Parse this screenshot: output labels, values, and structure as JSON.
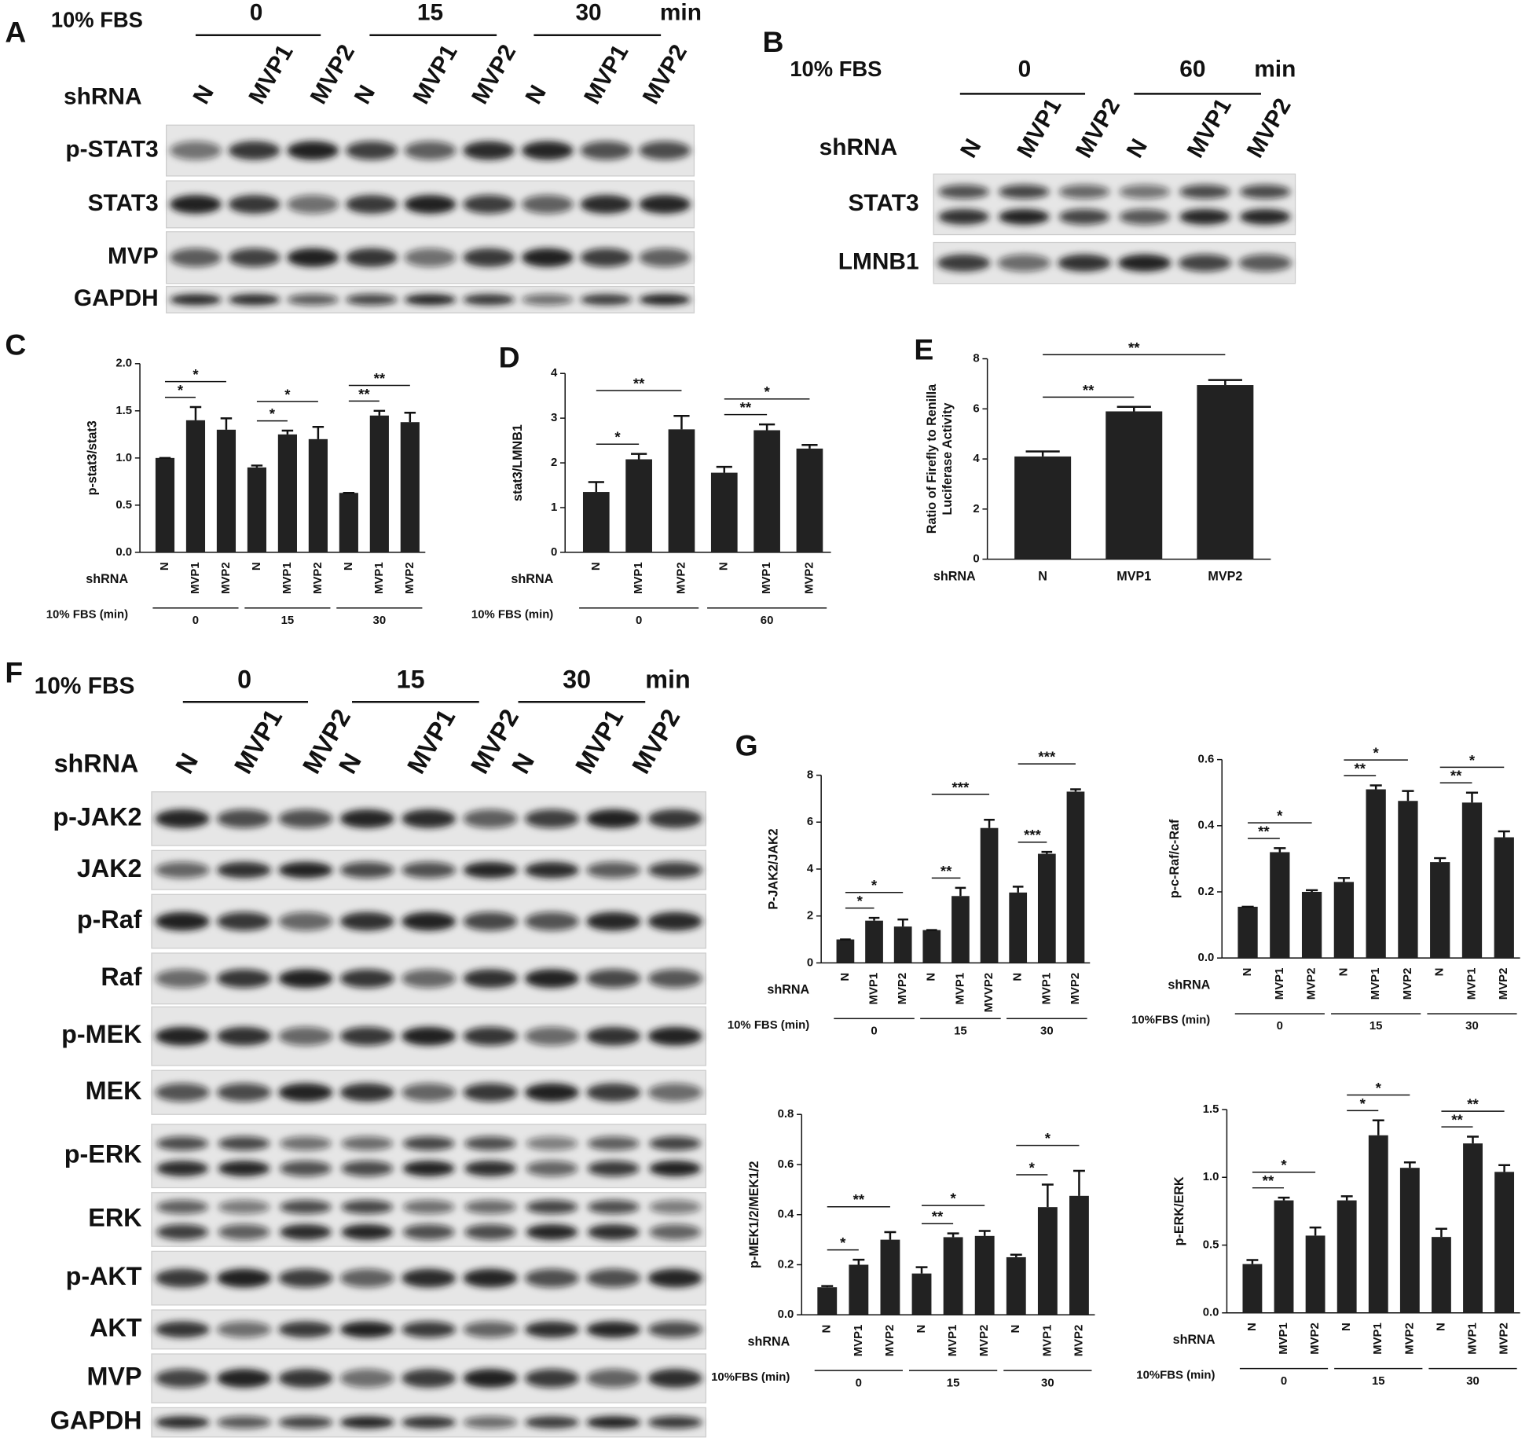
{
  "blots": [
    {
      "panel": "A",
      "treatment": "10% FBS",
      "times": [
        "0",
        "15",
        "30"
      ],
      "unit": "min",
      "shrna": "shRNA",
      "lanes": [
        "N",
        "MVP1",
        "MVP2",
        "N",
        "MVP1",
        "MVP2",
        "N",
        "MVP1",
        "MVP2"
      ],
      "rows": [
        "p-STAT3",
        "STAT3",
        "MVP",
        "GAPDH"
      ]
    },
    {
      "panel": "B",
      "treatment": "10% FBS",
      "times": [
        "0",
        "60"
      ],
      "unit": "min",
      "shrna": "shRNA",
      "lanes": [
        "N",
        "MVP1",
        "MVP2",
        "N",
        "MVP1",
        "MVP2"
      ],
      "rows": [
        "STAT3",
        "LMNB1"
      ]
    },
    {
      "panel": "F",
      "treatment": "10% FBS",
      "times": [
        "0",
        "15",
        "30"
      ],
      "unit": "min",
      "shrna": "shRNA",
      "lanes": [
        "N",
        "MVP1",
        "MVP2",
        "N",
        "MVP1",
        "MVP2",
        "N",
        "MVP1",
        "MVP2"
      ],
      "rows": [
        "p-JAK2",
        "JAK2",
        "p-Raf",
        "Raf",
        "p-MEK",
        "MEK",
        "p-ERK",
        "ERK",
        "p-AKT",
        "AKT",
        "MVP",
        "GAPDH"
      ]
    }
  ],
  "chart_data": [
    {
      "type": "bar",
      "panel": "C",
      "ylabel": [
        "p-stat3/stat3"
      ],
      "color": "#222222",
      "categories": [
        "N",
        "MVP1",
        "MVP2",
        "N",
        "MVP1",
        "MVP2",
        "N",
        "MVP1",
        "MVP2"
      ],
      "values": [
        1.0,
        1.4,
        1.3,
        0.9,
        1.25,
        1.2,
        0.63,
        1.45,
        1.38
      ],
      "errors": [
        0,
        0.14,
        0.12,
        0.02,
        0.04,
        0.13,
        0,
        0.05,
        0.1
      ],
      "ylim": [
        0,
        2.0
      ],
      "yticks": [
        {
          "value": 0,
          "label": "0.0"
        },
        0.5,
        {
          "value": 1,
          "label": "1.0"
        },
        1.5,
        {
          "value": 2,
          "label": "2.0"
        }
      ],
      "category_label": "shRNA",
      "group_label": "10% FBS (min)",
      "groups": [
        "0",
        "15",
        "30"
      ],
      "annotations": [
        {
          "pair": [
            0,
            1
          ],
          "label": "*"
        },
        {
          "pair": [
            0,
            2
          ],
          "label": "*"
        },
        {
          "pair": [
            3,
            4
          ],
          "label": "*"
        },
        {
          "pair": [
            3,
            5
          ],
          "label": "*"
        },
        {
          "pair": [
            6,
            7
          ],
          "label": "**"
        },
        {
          "pair": [
            6,
            8
          ],
          "label": "**"
        }
      ]
    },
    {
      "type": "bar",
      "panel": "D",
      "ylabel": [
        "stat3/LMNB1"
      ],
      "color": "#222222",
      "categories": [
        "N",
        "MVP1",
        "MVP2",
        "N",
        "MVP1",
        "MVP2"
      ],
      "values": [
        1.35,
        2.08,
        2.75,
        1.78,
        2.73,
        2.32
      ],
      "errors": [
        0.22,
        0.12,
        0.3,
        0.13,
        0.13,
        0.08
      ],
      "ylim": [
        0,
        4
      ],
      "yticks": [
        0,
        1,
        2,
        3,
        4
      ],
      "category_label": "shRNA",
      "group_label": "10% FBS (min)",
      "groups": [
        "0",
        "60"
      ],
      "annotations": [
        {
          "pair": [
            0,
            1
          ],
          "label": "*"
        },
        {
          "pair": [
            0,
            2
          ],
          "label": "**"
        },
        {
          "pair": [
            3,
            4
          ],
          "label": "**"
        },
        {
          "pair": [
            3,
            5
          ],
          "label": "*"
        }
      ]
    },
    {
      "type": "bar",
      "panel": "E",
      "ylabel": [
        "Ratio of Firefly to Renilla",
        "Luciferase Activity"
      ],
      "color": "#222222",
      "categories": [
        "N",
        "MVP1",
        "MVP2"
      ],
      "values": [
        4.1,
        5.9,
        6.95
      ],
      "errors": [
        0.2,
        0.18,
        0.2
      ],
      "ylim": [
        0,
        8
      ],
      "yticks": [
        0,
        2,
        4,
        6,
        8
      ],
      "category_label": "shRNA",
      "annotations": [
        {
          "pair": [
            0,
            1
          ],
          "label": "**"
        },
        {
          "pair": [
            0,
            2
          ],
          "label": "**"
        }
      ]
    },
    {
      "type": "bar",
      "panel": "G",
      "ylabel": [
        "P-JAK2/JAK2"
      ],
      "color": "#222222",
      "categories": [
        "N",
        "MVP1",
        "MVP2",
        "N",
        "MVP1",
        "MVVP2",
        "N",
        "MVP1",
        "MVP2"
      ],
      "values": [
        1.0,
        1.8,
        1.55,
        1.4,
        2.85,
        5.75,
        3.0,
        4.65,
        7.3
      ],
      "errors": [
        0,
        0.12,
        0.3,
        0,
        0.35,
        0.35,
        0.25,
        0.08,
        0.1
      ],
      "ylim": [
        0,
        8
      ],
      "yticks": [
        0,
        2,
        4,
        6,
        8
      ],
      "category_label": "shRNA",
      "group_label": "10% FBS (min)",
      "groups": [
        "0",
        "15",
        "30"
      ],
      "annotations": [
        {
          "pair": [
            0,
            1
          ],
          "label": "*"
        },
        {
          "pair": [
            0,
            2
          ],
          "label": "*"
        },
        {
          "pair": [
            3,
            4
          ],
          "label": "**"
        },
        {
          "pair": [
            3,
            5
          ],
          "label": "***"
        },
        {
          "pair": [
            6,
            7
          ],
          "label": "***"
        },
        {
          "pair": [
            6,
            8
          ],
          "label": "***"
        }
      ]
    },
    {
      "type": "bar",
      "ylabel": [
        "p-c-Raf/c-Raf"
      ],
      "color": "#222222",
      "categories": [
        "N",
        "MVP1",
        "MVP2",
        "N",
        "MVP1",
        "MVP2",
        "N",
        "MVP1",
        "MVP2"
      ],
      "values": [
        0.155,
        0.32,
        0.2,
        0.23,
        0.51,
        0.475,
        0.29,
        0.47,
        0.365
      ],
      "errors": [
        0,
        0.012,
        0.005,
        0.012,
        0.012,
        0.03,
        0.012,
        0.03,
        0.018
      ],
      "ylim": [
        0,
        0.6
      ],
      "yticks": [
        {
          "value": 0,
          "label": "0.0"
        },
        0.2,
        0.4,
        0.6
      ],
      "category_label": "shRNA",
      "group_label": "10%FBS (min)",
      "groups": [
        "0",
        "15",
        "30"
      ],
      "annotations": [
        {
          "pair": [
            0,
            1
          ],
          "label": "**"
        },
        {
          "pair": [
            0,
            2
          ],
          "label": "*"
        },
        {
          "pair": [
            3,
            4
          ],
          "label": "**"
        },
        {
          "pair": [
            3,
            5
          ],
          "label": "*"
        },
        {
          "pair": [
            6,
            7
          ],
          "label": "**"
        },
        {
          "pair": [
            6,
            8
          ],
          "label": "*"
        }
      ]
    },
    {
      "type": "bar",
      "ylabel": [
        "p-MEK1/2/MEK1/2"
      ],
      "color": "#222222",
      "categories": [
        "N",
        "MVP1",
        "MVP2",
        "N",
        "MVP1",
        "MVP2",
        "N",
        "MVP1",
        "MVP2"
      ],
      "values": [
        0.11,
        0.2,
        0.3,
        0.165,
        0.31,
        0.315,
        0.23,
        0.43,
        0.475
      ],
      "errors": [
        0.005,
        0.02,
        0.03,
        0.025,
        0.015,
        0.02,
        0.01,
        0.09,
        0.1
      ],
      "ylim": [
        0,
        0.8
      ],
      "yticks": [
        {
          "value": 0,
          "label": "0.0"
        },
        0.2,
        0.4,
        0.6,
        0.8
      ],
      "category_label": "shRNA",
      "group_label": "10%FBS (min)",
      "groups": [
        "0",
        "15",
        "30"
      ],
      "annotations": [
        {
          "pair": [
            0,
            1
          ],
          "label": "*"
        },
        {
          "pair": [
            0,
            2
          ],
          "label": "**"
        },
        {
          "pair": [
            3,
            4
          ],
          "label": "**"
        },
        {
          "pair": [
            3,
            5
          ],
          "label": "*"
        },
        {
          "pair": [
            6,
            7
          ],
          "label": "*"
        },
        {
          "pair": [
            6,
            8
          ],
          "label": "*"
        }
      ]
    },
    {
      "type": "bar",
      "ylabel": [
        "p-ERK/ERK"
      ],
      "color": "#222222",
      "categories": [
        "N",
        "MVP1",
        "MVP2",
        "N",
        "MVP1",
        "MVP2",
        "N",
        "MVP1",
        "MVP2"
      ],
      "values": [
        0.36,
        0.83,
        0.57,
        0.83,
        1.31,
        1.07,
        0.56,
        1.25,
        1.04
      ],
      "errors": [
        0.03,
        0.02,
        0.06,
        0.03,
        0.11,
        0.04,
        0.06,
        0.05,
        0.05
      ],
      "ylim": [
        0,
        1.5
      ],
      "yticks": [
        {
          "value": 0,
          "label": "0.0"
        },
        0.5,
        {
          "value": 1,
          "label": "1.0"
        },
        1.5
      ],
      "category_label": "shRNA",
      "group_label": "10%FBS (min)",
      "groups": [
        "0",
        "15",
        "30"
      ],
      "annotations": [
        {
          "pair": [
            0,
            1
          ],
          "label": "**"
        },
        {
          "pair": [
            0,
            2
          ],
          "label": "*"
        },
        {
          "pair": [
            3,
            4
          ],
          "label": "*"
        },
        {
          "pair": [
            3,
            5
          ],
          "label": "*"
        },
        {
          "pair": [
            6,
            7
          ],
          "label": "**"
        },
        {
          "pair": [
            6,
            8
          ],
          "label": "**"
        }
      ]
    }
  ]
}
